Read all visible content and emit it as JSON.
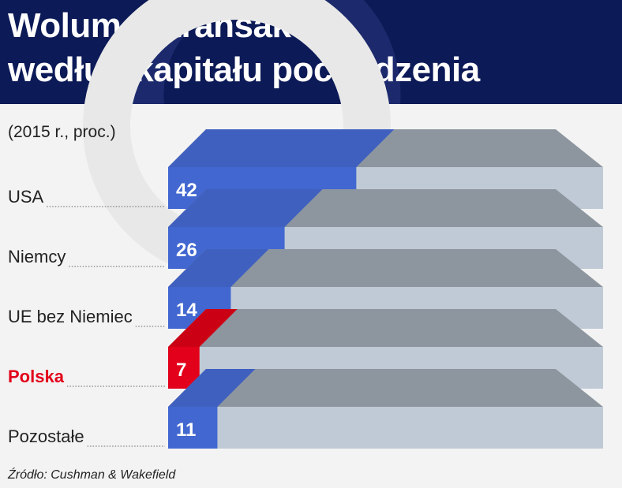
{
  "title": {
    "line1": "Wolumen transakcji",
    "line2": "według kapitału pochodzenia"
  },
  "subtitle": "(2015 r., proc.)",
  "source": "Źródło: Cushman & Wakefield",
  "colors": {
    "header_bg": "#0c1a57",
    "bar_blue": "#4267d0",
    "bar_blue_top": "#3f60bf",
    "bar_red": "#e2001a",
    "bar_red_top": "#cc0015",
    "track": "#bfcad6",
    "track_top": "#8d969f",
    "label_highlight": "#e2001a"
  },
  "chart_data": {
    "type": "bar",
    "orientation": "horizontal",
    "categories": [
      "USA",
      "Niemcy",
      "UE bez Niemiec",
      "Polska",
      "Pozostałe"
    ],
    "values": [
      42,
      26,
      14,
      7,
      11
    ],
    "value_labels": [
      "42",
      "26",
      "14",
      "7",
      "11"
    ],
    "highlight": "Polska",
    "title": "Wolumen transakcji według kapitału pochodzenia",
    "subtitle": "(2015 r., proc.)",
    "xlim": [
      0,
      100
    ],
    "grid": false,
    "legend": "none"
  }
}
